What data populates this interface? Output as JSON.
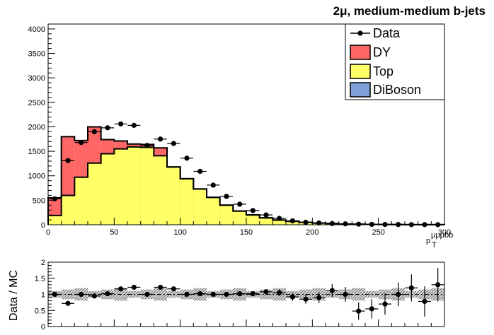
{
  "title": "2μ, medium-medium b-jets",
  "chart_data": [
    {
      "type": "bar",
      "subtype": "stacked-histogram",
      "bin_edges": [
        0,
        10,
        20,
        30,
        40,
        50,
        60,
        70,
        80,
        90,
        100,
        110,
        120,
        130,
        140,
        150,
        160,
        170,
        180,
        190,
        200,
        210,
        220,
        230,
        240,
        250,
        260,
        270,
        280,
        290,
        300
      ],
      "series": [
        {
          "name": "Top",
          "color": "#ffff66",
          "values": [
            190,
            600,
            970,
            1260,
            1450,
            1550,
            1590,
            1580,
            1410,
            1180,
            940,
            730,
            560,
            400,
            280,
            200,
            140,
            95,
            70,
            50,
            35,
            25,
            15,
            10,
            7,
            5,
            3,
            2,
            2,
            1
          ]
        },
        {
          "name": "DY",
          "color": "#ff6666",
          "values": [
            360,
            1200,
            750,
            740,
            290,
            160,
            60,
            60,
            160,
            0,
            0,
            0,
            0,
            0,
            0,
            0,
            0,
            0,
            0,
            0,
            0,
            0,
            0,
            0,
            0,
            0,
            0,
            0,
            0,
            0
          ]
        },
        {
          "name": "DiBoson",
          "color": "#7f9fd6",
          "values": []
        }
      ],
      "data_points": {
        "name": "Data",
        "x": [
          5,
          15,
          25,
          35,
          45,
          55,
          65,
          75,
          85,
          95,
          105,
          115,
          125,
          135,
          145,
          155,
          165,
          175,
          185,
          195,
          205,
          215,
          225,
          235,
          245,
          255,
          265,
          275,
          285,
          295
        ],
        "y": [
          530,
          1310,
          1680,
          1900,
          1980,
          2060,
          2030,
          1620,
          1750,
          1660,
          1360,
          1090,
          810,
          580,
          420,
          290,
          200,
          130,
          80,
          50,
          38,
          25,
          18,
          12,
          8,
          6,
          5,
          3,
          3,
          2
        ]
      },
      "x_ticks": [
        "0",
        "50",
        "100",
        "150",
        "200",
        "250",
        "300"
      ],
      "y_ticks": [
        "0",
        "500",
        "1000",
        "1500",
        "2000",
        "2500",
        "3000",
        "3500",
        "4000"
      ],
      "xlim": [
        0,
        300
      ],
      "ylim": [
        0,
        4100
      ],
      "xlabel_main": "p",
      "xlabel_sub": "T",
      "xlabel_sup": "μμμbb",
      "legend": [
        "Data",
        "DY",
        "Top",
        "DiBoson"
      ],
      "legend_position": "top-right"
    },
    {
      "type": "scatter",
      "subtype": "ratio",
      "ylabel": "Data / MC",
      "ylim": [
        0,
        2
      ],
      "y_ticks": [
        "0",
        "0.5",
        "1",
        "1.5",
        "2"
      ],
      "x": [
        5,
        15,
        25,
        35,
        45,
        55,
        65,
        75,
        85,
        95,
        105,
        115,
        125,
        135,
        145,
        155,
        165,
        175,
        185,
        195,
        205,
        215,
        225,
        235,
        245,
        255,
        265,
        275,
        285,
        295
      ],
      "ratio": [
        1.0,
        0.72,
        1.0,
        0.95,
        1.02,
        1.17,
        1.22,
        1.0,
        1.22,
        1.17,
        1.0,
        1.02,
        1.0,
        1.0,
        1.02,
        1.02,
        1.08,
        1.05,
        0.92,
        0.85,
        0.9,
        1.12,
        1.0,
        0.48,
        0.55,
        0.7,
        1.0,
        1.2,
        0.78,
        1.3
      ],
      "err": [
        0.08,
        0.04,
        0.03,
        0.03,
        0.03,
        0.03,
        0.03,
        0.03,
        0.03,
        0.03,
        0.03,
        0.04,
        0.04,
        0.05,
        0.06,
        0.07,
        0.08,
        0.1,
        0.12,
        0.14,
        0.17,
        0.2,
        0.23,
        0.27,
        0.3,
        0.33,
        0.37,
        0.42,
        0.47,
        0.52
      ],
      "band_half_width": 0.15
    }
  ]
}
